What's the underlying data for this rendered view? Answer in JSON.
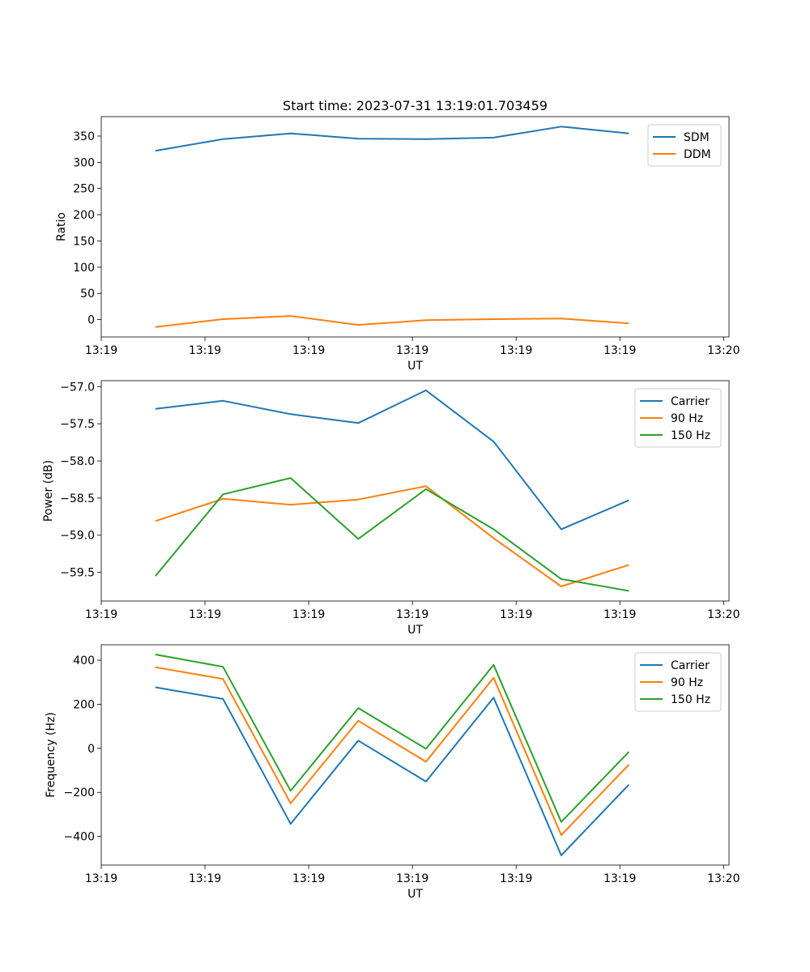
{
  "figure_title": "Start time: 2023-07-31 13:19:01.703459",
  "chart_data": [
    {
      "type": "line",
      "title": "Start time: 2023-07-31 13:19:01.703459",
      "xlabel": "UT",
      "ylabel": "Ratio",
      "x": [
        1,
        2,
        3,
        4,
        5,
        6,
        7,
        8
      ],
      "xlim": [
        0.2,
        9.48
      ],
      "x_ticks": [
        0.2,
        1.733,
        3.267,
        4.8,
        6.333,
        7.867,
        9.4
      ],
      "x_tick_labels": [
        "13:19",
        "13:19",
        "13:19",
        "13:19",
        "13:19",
        "13:19",
        "13:20"
      ],
      "ylim": [
        -33,
        387
      ],
      "y_ticks": [
        0,
        50,
        100,
        150,
        200,
        250,
        300,
        350
      ],
      "y_tick_labels": [
        "0",
        "50",
        "100",
        "150",
        "200",
        "250",
        "300",
        "350"
      ],
      "legend_position": "top-right",
      "series": [
        {
          "name": "SDM",
          "color": "#1f77b4",
          "values": [
            322,
            344,
            355,
            345,
            344,
            347,
            368,
            355
          ]
        },
        {
          "name": "DDM",
          "color": "#ff7f0e",
          "values": [
            -14,
            1,
            7,
            -10,
            -1,
            1,
            2,
            -7
          ]
        }
      ]
    },
    {
      "type": "line",
      "title": "",
      "xlabel": "UT",
      "ylabel": "Power (dB)",
      "x": [
        1,
        2,
        3,
        4,
        5,
        6,
        7,
        8
      ],
      "xlim": [
        0.2,
        9.48
      ],
      "x_ticks": [
        0.2,
        1.733,
        3.267,
        4.8,
        6.333,
        7.867,
        9.4
      ],
      "x_tick_labels": [
        "13:19",
        "13:19",
        "13:19",
        "13:19",
        "13:19",
        "13:19",
        "13:20"
      ],
      "ylim": [
        -59.886,
        -56.92
      ],
      "y_ticks": [
        -57.0,
        -57.5,
        -58.0,
        -58.5,
        -59.0,
        -59.5
      ],
      "y_tick_labels": [
        "−57.0",
        "−57.5",
        "−58.0",
        "−58.5",
        "−59.0",
        "−59.5"
      ],
      "legend_position": "top-right",
      "series": [
        {
          "name": "Carrier",
          "color": "#1f77b4",
          "values": [
            -57.3,
            -57.19,
            -57.37,
            -57.49,
            -57.05,
            -57.74,
            -58.92,
            -58.53
          ]
        },
        {
          "name": "90 Hz",
          "color": "#ff7f0e",
          "values": [
            -58.81,
            -58.51,
            -58.59,
            -58.52,
            -58.34,
            -59.04,
            -59.69,
            -59.4
          ]
        },
        {
          "name": "150 Hz",
          "color": "#2ca02c",
          "values": [
            -59.55,
            -58.45,
            -58.23,
            -59.05,
            -58.38,
            -58.92,
            -59.59,
            -59.75
          ]
        }
      ]
    },
    {
      "type": "line",
      "title": "",
      "xlabel": "UT",
      "ylabel": "Frequency (Hz)",
      "x": [
        1,
        2,
        3,
        4,
        5,
        6,
        7,
        8
      ],
      "xlim": [
        0.2,
        9.48
      ],
      "x_ticks": [
        0.2,
        1.733,
        3.267,
        4.8,
        6.333,
        7.867,
        9.4
      ],
      "x_tick_labels": [
        "13:19",
        "13:19",
        "13:19",
        "13:19",
        "13:19",
        "13:19",
        "13:20"
      ],
      "ylim": [
        -530,
        470
      ],
      "y_ticks": [
        -400,
        -200,
        0,
        200,
        400
      ],
      "y_tick_labels": [
        "−400",
        "−200",
        "0",
        "200",
        "400"
      ],
      "legend_position": "top-right",
      "series": [
        {
          "name": "Carrier",
          "color": "#1f77b4",
          "values": [
            277,
            224,
            -343,
            35,
            -151,
            230,
            -486,
            -165
          ]
        },
        {
          "name": "90 Hz",
          "color": "#ff7f0e",
          "values": [
            368,
            315,
            -250,
            125,
            -61,
            320,
            -394,
            -74
          ]
        },
        {
          "name": "150 Hz",
          "color": "#2ca02c",
          "values": [
            426,
            370,
            -193,
            183,
            -2,
            379,
            -334,
            -16
          ]
        }
      ]
    }
  ]
}
